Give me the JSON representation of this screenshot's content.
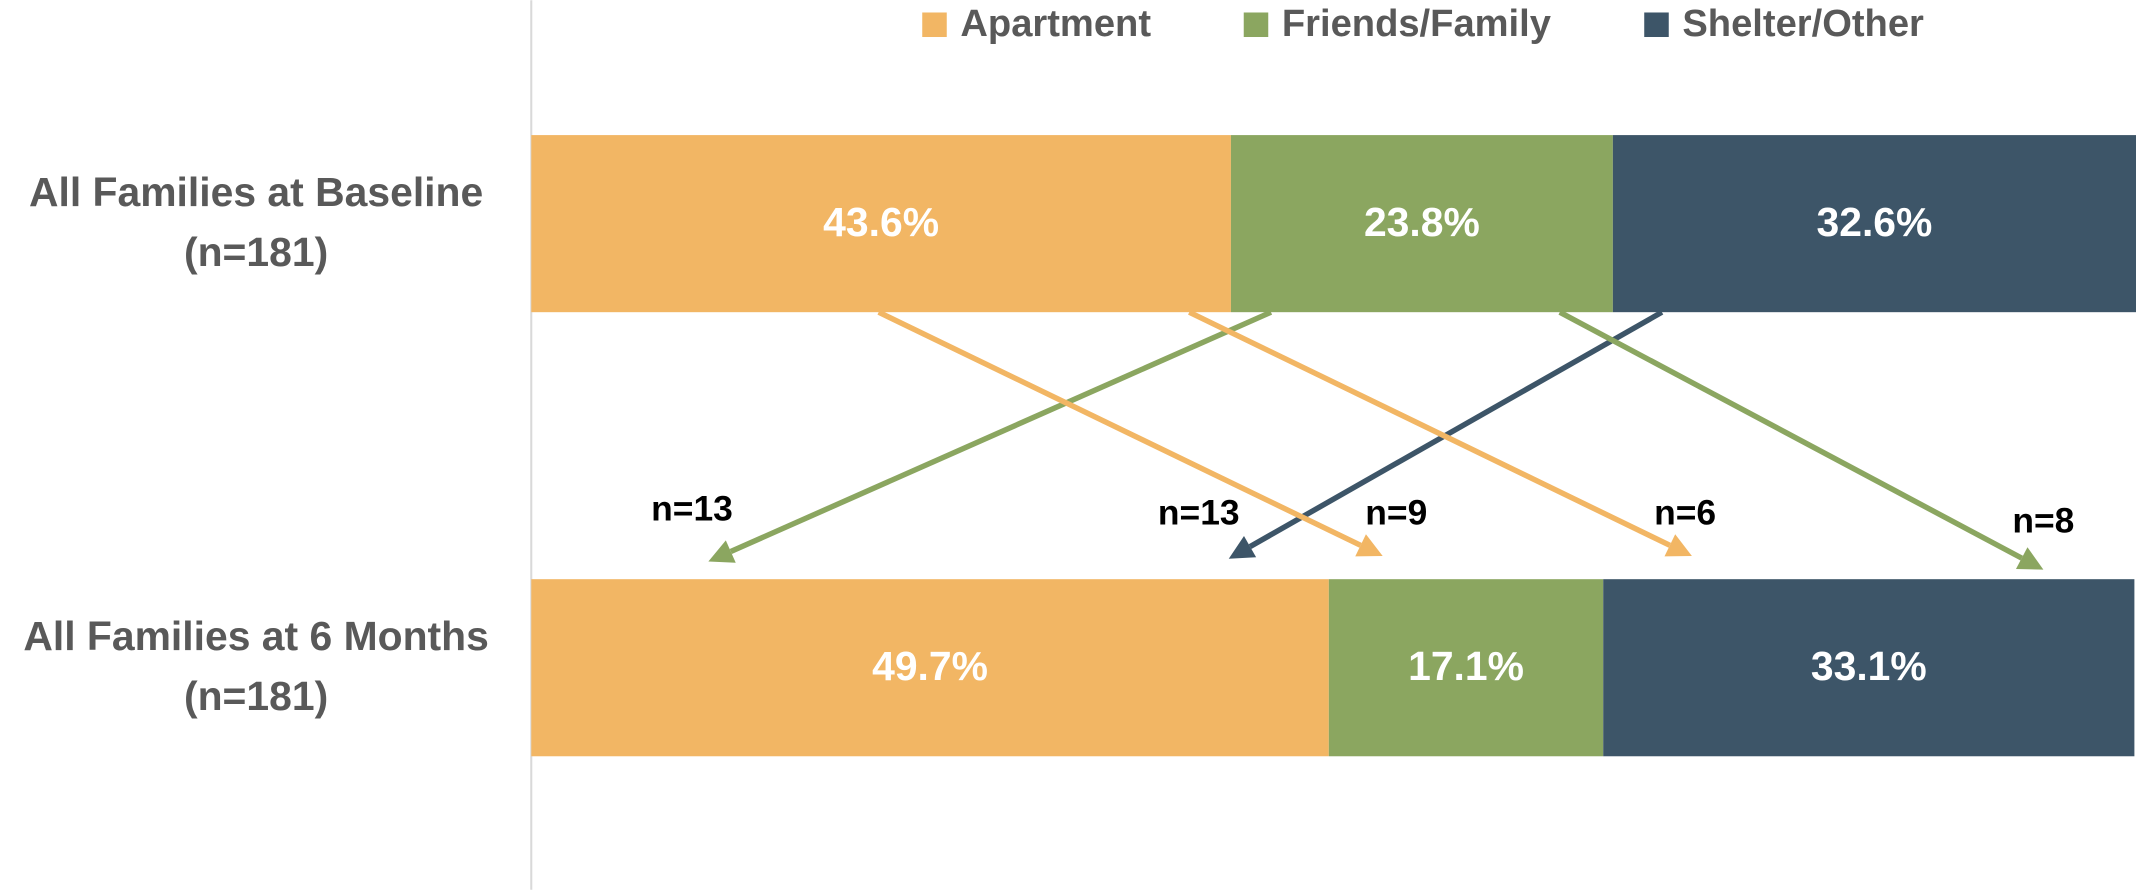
{
  "chart_data": {
    "type": "stacked-bar-horizontal",
    "categories": [
      "All Families at Baseline\n(n=181)",
      "All Families at 6 Months\n(n=181)"
    ],
    "series": [
      {
        "name": "Apartment",
        "color": "#f2b664",
        "values": [
          43.6,
          49.7
        ],
        "value_labels": [
          "43.6%",
          "49.7%"
        ]
      },
      {
        "name": "Friends/Family",
        "color": "#8ba660",
        "values": [
          23.8,
          17.1
        ],
        "value_labels": [
          "23.8%",
          "17.1%"
        ]
      },
      {
        "name": "Shelter/Other",
        "color": "#3d5568",
        "values": [
          32.6,
          33.1
        ],
        "value_labels": [
          "32.6%",
          "33.1%"
        ]
      }
    ],
    "xlim": [
      0,
      100
    ],
    "legend": "top",
    "annotations": [
      "n=13",
      "n=13",
      "n=9",
      "n=6",
      "n=8"
    ]
  }
}
